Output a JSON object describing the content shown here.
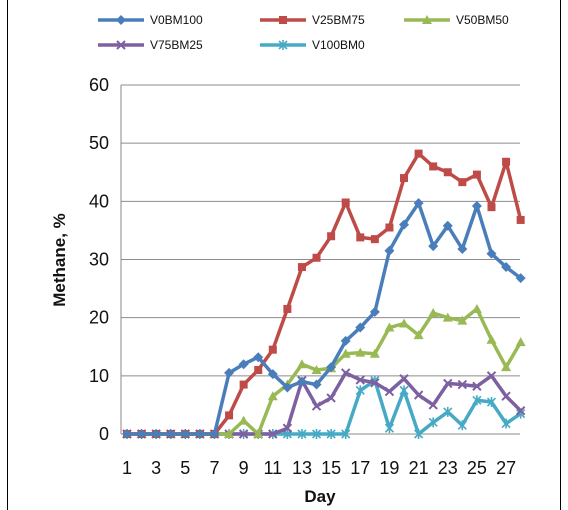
{
  "chart_data": {
    "type": "line",
    "xlabel": "Day",
    "ylabel": "Methane, %",
    "ylim": [
      0,
      60
    ],
    "yticks": [
      0,
      10,
      20,
      30,
      40,
      50,
      60
    ],
    "xlim": [
      1,
      28
    ],
    "xticks": [
      1,
      3,
      5,
      7,
      9,
      11,
      13,
      15,
      17,
      19,
      21,
      23,
      25,
      27
    ],
    "grid": "horizontal",
    "legend_position": "top",
    "x": [
      1,
      2,
      3,
      4,
      5,
      6,
      7,
      8,
      9,
      10,
      11,
      12,
      13,
      14,
      15,
      16,
      17,
      18,
      19,
      20,
      21,
      22,
      23,
      24,
      25,
      26,
      27,
      28
    ],
    "series": [
      {
        "name": "V0BM100",
        "color": "#4a7ebb",
        "marker": "diamond",
        "values": [
          0,
          0,
          0,
          0,
          0,
          0,
          0,
          10.5,
          12,
          13.2,
          10.3,
          8,
          9,
          8.5,
          11.5,
          16,
          18.3,
          21,
          31.5,
          36,
          39.7,
          32.3,
          35.8,
          31.8,
          39.2,
          31,
          28.7,
          26.8
        ]
      },
      {
        "name": "V25BM75",
        "color": "#be4b48",
        "marker": "square",
        "values": [
          0,
          0,
          0,
          0,
          0,
          0,
          0,
          3.2,
          8.5,
          11,
          14.5,
          21.5,
          28.7,
          30.3,
          34,
          39.8,
          33.8,
          33.5,
          35.5,
          44,
          48.2,
          46,
          45,
          43.3,
          44.6,
          39,
          46.8,
          36.8
        ]
      },
      {
        "name": "V50BM50",
        "color": "#98b954",
        "marker": "triangle",
        "values": [
          0,
          0,
          0,
          0,
          0,
          0,
          0,
          0,
          2.3,
          0,
          6.5,
          8.5,
          12,
          11,
          11.3,
          13.8,
          14,
          13.8,
          18.3,
          19,
          17,
          20.8,
          20,
          19.5,
          21.5,
          16.2,
          11.5,
          15.8
        ]
      },
      {
        "name": "V75BM25",
        "color": "#7d60a0",
        "marker": "x",
        "values": [
          0,
          0,
          0,
          0,
          0,
          0,
          0,
          0,
          0,
          0,
          0,
          1,
          9.2,
          4.8,
          6.2,
          10.5,
          9.3,
          8.8,
          7.3,
          9.5,
          6.7,
          5,
          8.7,
          8.5,
          8.2,
          10,
          6.5,
          4
        ]
      },
      {
        "name": "V100BM0",
        "color": "#46aac5",
        "marker": "star",
        "values": [
          0,
          0,
          0,
          0,
          0,
          0,
          0,
          0,
          0,
          0,
          0,
          0,
          0,
          0,
          0,
          0,
          7.5,
          9.2,
          1,
          7.5,
          0,
          2,
          3.8,
          1.5,
          5.8,
          5.5,
          1.8,
          3.5
        ]
      }
    ]
  }
}
